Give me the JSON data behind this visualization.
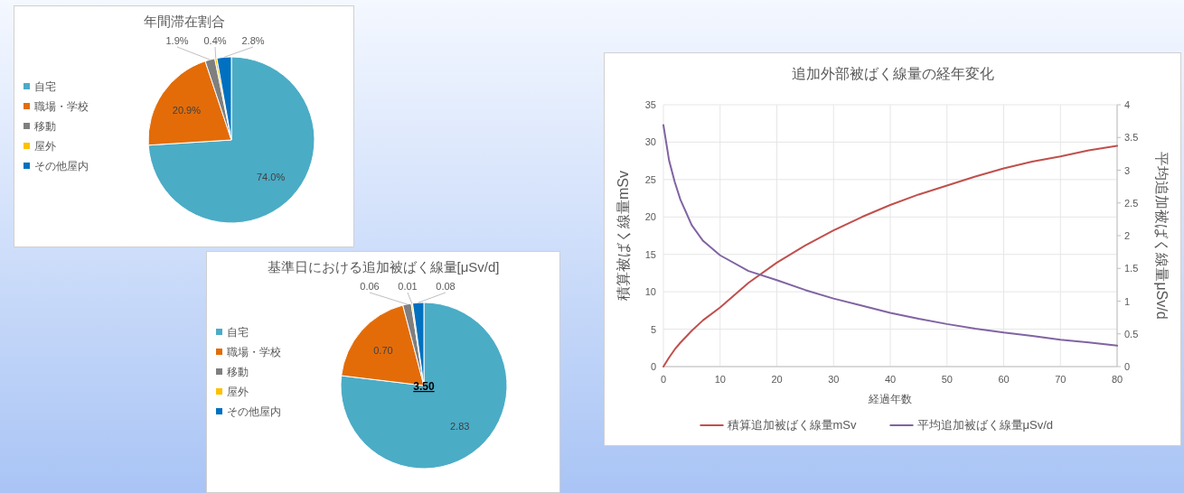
{
  "chart_data": [
    {
      "type": "pie",
      "title": "年間滞在割合",
      "categories": [
        "自宅",
        "職場・学校",
        "移動",
        "屋外",
        "その他屋内"
      ],
      "values": [
        74.0,
        20.9,
        1.9,
        0.4,
        2.8
      ],
      "colors": [
        "#4bacc6",
        "#e36c09",
        "#7f7f7f",
        "#ffc000",
        "#0070c0"
      ],
      "value_labels": [
        "74.0%",
        "20.9%",
        "1.9%",
        "0.4%",
        "2.8%"
      ],
      "legend": "left"
    },
    {
      "type": "pie",
      "title": "基準日における追加被ばく線量[μSv/d]",
      "categories": [
        "自宅",
        "職場・学校",
        "移動",
        "屋外",
        "その他屋内"
      ],
      "values": [
        2.83,
        0.7,
        0.06,
        0.01,
        0.08
      ],
      "colors": [
        "#4bacc6",
        "#e36c09",
        "#7f7f7f",
        "#ffc000",
        "#0070c0"
      ],
      "value_labels": [
        "2.83",
        "0.70",
        "0.06",
        "0.01",
        "0.08"
      ],
      "legend": "left",
      "annotations": [
        "3.50"
      ]
    },
    {
      "type": "line",
      "title": "追加外部被ばく線量の経年変化",
      "xlabel": "経過年数",
      "ylabel": "積算被ばく線量mSv",
      "y2label": "平均追加被ばく線量μSv/d",
      "x": [
        0,
        1,
        2,
        3,
        5,
        7,
        10,
        15,
        20,
        25,
        30,
        35,
        40,
        45,
        50,
        55,
        60,
        65,
        70,
        75,
        80
      ],
      "series": [
        {
          "name": "積算追加被ばく線量mSv",
          "color": "#c0504d",
          "values": [
            0,
            1.2,
            2.3,
            3.2,
            4.8,
            6.2,
            7.9,
            11.2,
            13.9,
            16.2,
            18.2,
            20.0,
            21.6,
            23.0,
            24.2,
            25.4,
            26.5,
            27.4,
            28.1,
            28.9,
            29.5
          ]
        },
        {
          "name": "平均追加被ばく線量μSv/d",
          "color": "#8064a2",
          "axis": "y2",
          "values": [
            3.69,
            3.15,
            2.82,
            2.55,
            2.16,
            1.92,
            1.7,
            1.46,
            1.32,
            1.17,
            1.04,
            0.93,
            0.82,
            0.73,
            0.65,
            0.58,
            0.52,
            0.47,
            0.41,
            0.37,
            0.32
          ]
        }
      ],
      "xlim": [
        0,
        80
      ],
      "xticks": [
        0,
        10,
        20,
        30,
        40,
        50,
        60,
        70,
        80
      ],
      "ylim": [
        0,
        35
      ],
      "yticks": [
        0,
        5,
        10,
        15,
        20,
        25,
        30,
        35
      ],
      "y2lim": [
        0,
        4
      ],
      "y2ticks": [
        0,
        0.5,
        1,
        1.5,
        2,
        2.5,
        3,
        3.5,
        4
      ],
      "grid": true,
      "legend": "bottom"
    }
  ]
}
